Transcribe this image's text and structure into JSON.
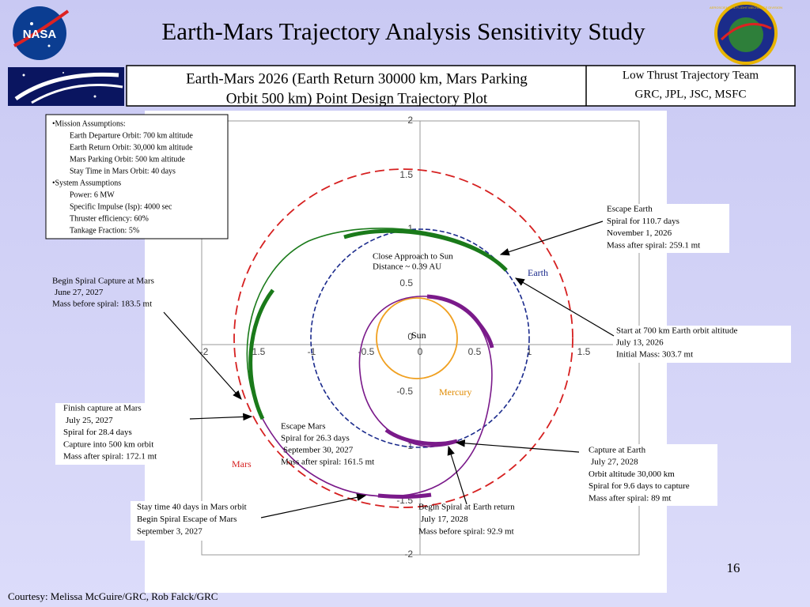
{
  "logos": {
    "left": "NASA",
    "right": "AEROSCIENCE & FLIGHT MECHANICS DIVISION"
  },
  "header": {
    "title": "Earth-Mars Trajectory Analysis Sensitivity Study",
    "subtitle_lines": [
      "Earth-Mars 2026 (Earth Return 30000 km, Mars Parking",
      "Orbit 500 km) Point Design Trajectory Plot"
    ],
    "team_lines": [
      "Low Thrust Trajectory Team",
      "GRC, JPL, JSC, MSFC"
    ]
  },
  "assumptions": [
    "•Mission Assumptions:",
    "Earth Departure Orbit: 700 km altitude",
    "Earth Return Orbit: 30,000 km altitude",
    "Mars Parking Orbit: 500 km altitude",
    "Stay Time in Mars Orbit: 40 days",
    "•System Assumptions",
    "Power: 6 MW",
    "Specific Impulse (Isp): 4000 sec",
    "Thruster efficiency: 60%",
    "Tankage Fraction: 5%"
  ],
  "plot": {
    "x_ticks": [
      "-2",
      "-1.5",
      "-1",
      "-0.5",
      "0",
      "0.5",
      "1",
      "1.5"
    ],
    "y_ticks": [
      "2",
      "1.5",
      "1",
      "0.5",
      "0",
      "-0.5",
      "-1",
      "-1.5",
      "-2"
    ],
    "labels": {
      "sun": "Sun",
      "mercury": "Mercury",
      "earth": "Earth",
      "mars": "Mars"
    },
    "close_approach": [
      "Close Approach to Sun",
      "Distance ~ 0.39 AU"
    ]
  },
  "callouts": [
    {
      "lines": [
        "Escape Earth",
        "Spiral for 110.7 days",
        "November 1, 2026",
        "Mass after spiral: 259.1 mt"
      ]
    },
    {
      "lines": [
        "Start at 700 km Earth orbit altitude",
        "July 13, 2026",
        "Initial Mass: 303.7 mt"
      ]
    },
    {
      "lines": [
        "Begin Spiral Capture at Mars",
        "June 27, 2027",
        "Mass before spiral:   183.5 mt"
      ]
    },
    {
      "lines": [
        "Finish capture at Mars",
        "July 25, 2027",
        "Spiral for  28.4  days",
        "Capture into 500 km orbit",
        "Mass after spiral:  172.1 mt"
      ]
    },
    {
      "lines": [
        "Escape Mars",
        "Spiral for 26.3 days",
        "September 30, 2027",
        "Mass after spiral: 161.5 mt"
      ]
    },
    {
      "lines": [
        "Stay time 40 days in Mars orbit",
        "Begin Spiral Escape of Mars",
        "September 3, 2027"
      ]
    },
    {
      "lines": [
        "Begin Spiral at Earth return",
        "July 17, 2028",
        "Mass before spiral: 92.9 mt"
      ]
    },
    {
      "lines": [
        "Capture at  Earth",
        "July 27, 2028",
        "Orbit altitude 30,000 km",
        "Spiral for 9.6 days to capture",
        "Mass after spiral: 89 mt"
      ]
    }
  ],
  "footer": {
    "page_number": "16",
    "courtesy": "Courtesy:  Melissa McGuire/GRC, Rob Falck/GRC"
  }
}
